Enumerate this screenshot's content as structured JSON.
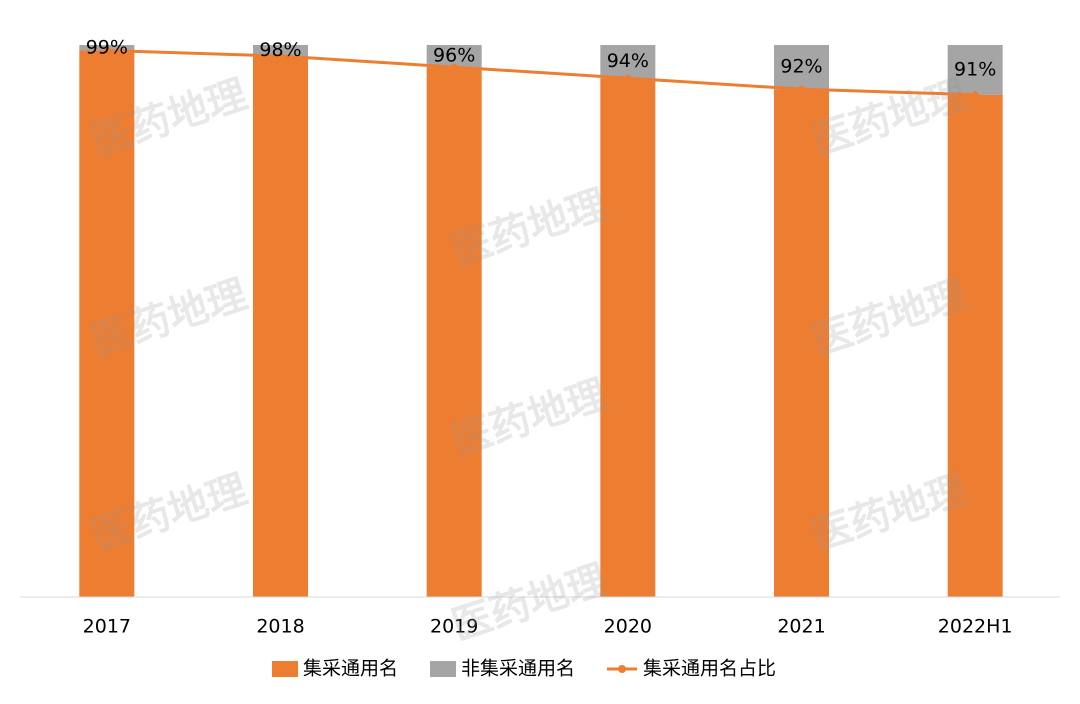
{
  "chart_data": {
    "type": "bar",
    "stacked": true,
    "watermark": "医药地理",
    "categories": [
      "2017",
      "2018",
      "2019",
      "2020",
      "2021",
      "2022H1"
    ],
    "ylim": [
      0,
      100
    ],
    "series": [
      {
        "name": "集采通用名",
        "type": "bar",
        "color": "#ed7d31",
        "values": [
          99,
          98,
          96,
          94,
          92,
          91
        ]
      },
      {
        "name": "非集采通用名",
        "type": "bar",
        "color": "#a5a5a5",
        "values": [
          1,
          2,
          4,
          6,
          8,
          9
        ]
      },
      {
        "name": "集采通用名占比",
        "type": "line",
        "color": "#ed7d31",
        "values": [
          99,
          98,
          96,
          94,
          92,
          91
        ],
        "value_labels": [
          "99%",
          "98%",
          "96%",
          "94%",
          "92%",
          "91%"
        ]
      }
    ],
    "legend": "bottom"
  }
}
